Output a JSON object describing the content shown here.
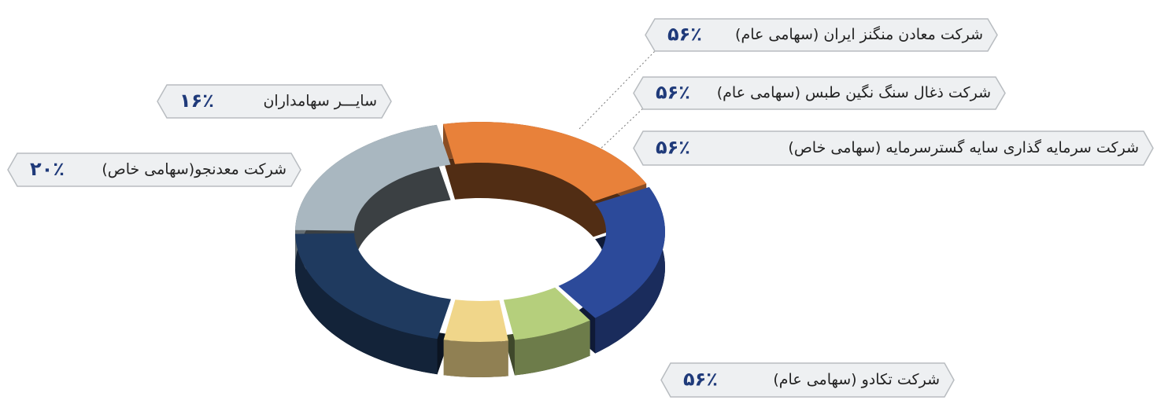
{
  "chart_data": {
    "type": "pie",
    "categories": [
      "شرکت تکادو (سهامی عام)",
      "شرکت معدنجو(سهامی خاص)",
      "سایـــر سهامداران",
      "شرکت معادن منگنز ایران (سهامی عام)",
      "شرکت ذغال سنگ نگین طبس (سهامی عام)",
      "شرکت سرمایه گذاری سایه گسترسرمایه (سهامی خاص)"
    ],
    "values": [
      56,
      20,
      16,
      56,
      56,
      56
    ],
    "value_labels": [
      "۵۶٪",
      "۲۰٪",
      "۱۶٪",
      "۵۶٪",
      "۵۶٪",
      "۵۶٪"
    ],
    "colors": [
      "#2c4a9a",
      "#b5cf7c",
      "#f0d68a",
      "#1f3a5f",
      "#a9b7c0",
      "#e8813a"
    ]
  }
}
